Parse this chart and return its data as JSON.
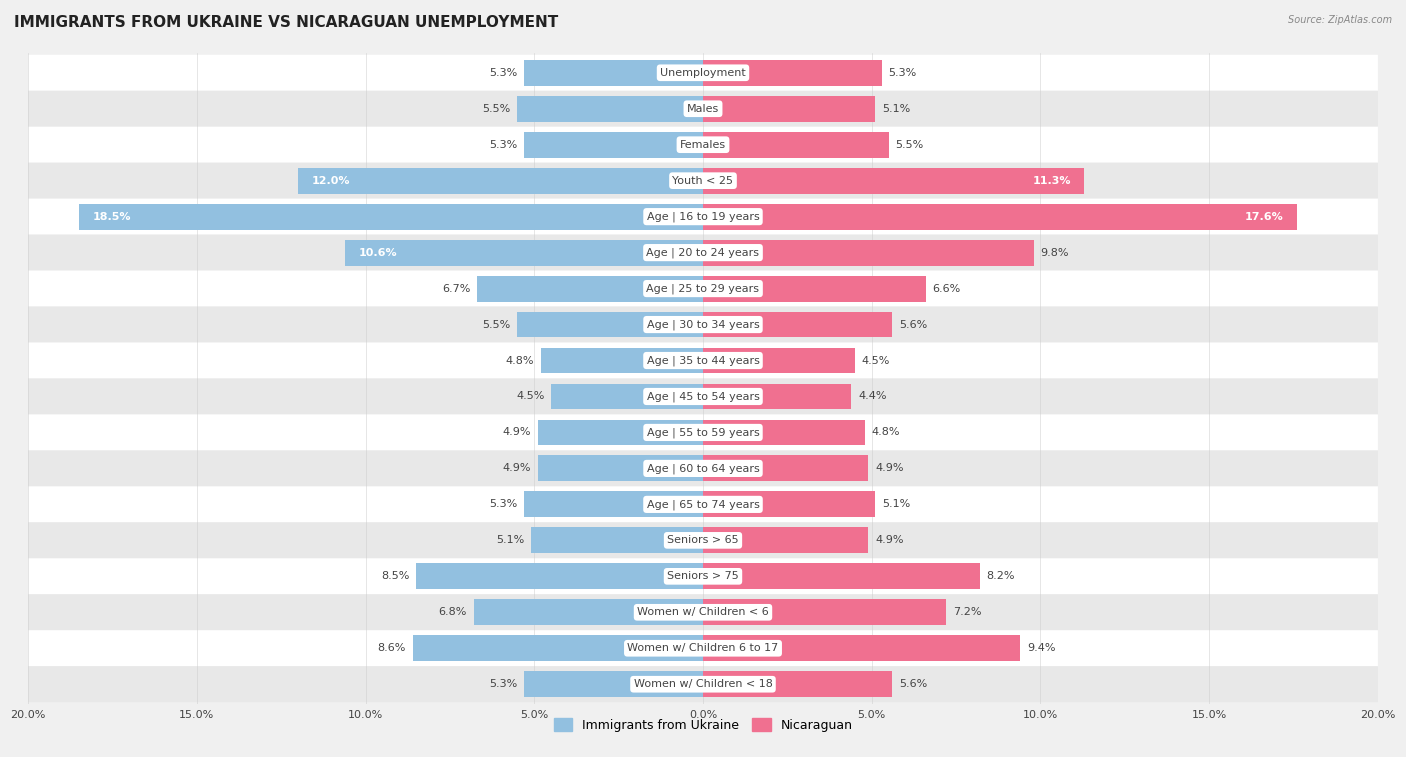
{
  "title": "IMMIGRANTS FROM UKRAINE VS NICARAGUAN UNEMPLOYMENT",
  "source": "Source: ZipAtlas.com",
  "categories": [
    "Unemployment",
    "Males",
    "Females",
    "Youth < 25",
    "Age | 16 to 19 years",
    "Age | 20 to 24 years",
    "Age | 25 to 29 years",
    "Age | 30 to 34 years",
    "Age | 35 to 44 years",
    "Age | 45 to 54 years",
    "Age | 55 to 59 years",
    "Age | 60 to 64 years",
    "Age | 65 to 74 years",
    "Seniors > 65",
    "Seniors > 75",
    "Women w/ Children < 6",
    "Women w/ Children 6 to 17",
    "Women w/ Children < 18"
  ],
  "ukraine_values": [
    5.3,
    5.5,
    5.3,
    12.0,
    18.5,
    10.6,
    6.7,
    5.5,
    4.8,
    4.5,
    4.9,
    4.9,
    5.3,
    5.1,
    8.5,
    6.8,
    8.6,
    5.3
  ],
  "nicaraguan_values": [
    5.3,
    5.1,
    5.5,
    11.3,
    17.6,
    9.8,
    6.6,
    5.6,
    4.5,
    4.4,
    4.8,
    4.9,
    5.1,
    4.9,
    8.2,
    7.2,
    9.4,
    5.6
  ],
  "ukraine_color": "#92c0e0",
  "nicaraguan_color": "#f07090",
  "ukraine_label": "Immigrants from Ukraine",
  "nicaraguan_label": "Nicaraguan",
  "x_max": 20.0,
  "background_color": "#f0f0f0",
  "row_color_light": "#ffffff",
  "row_color_dark": "#e8e8e8",
  "title_fontsize": 11,
  "label_fontsize": 8,
  "value_fontsize": 8,
  "legend_fontsize": 9,
  "axis_label_fontsize": 8
}
